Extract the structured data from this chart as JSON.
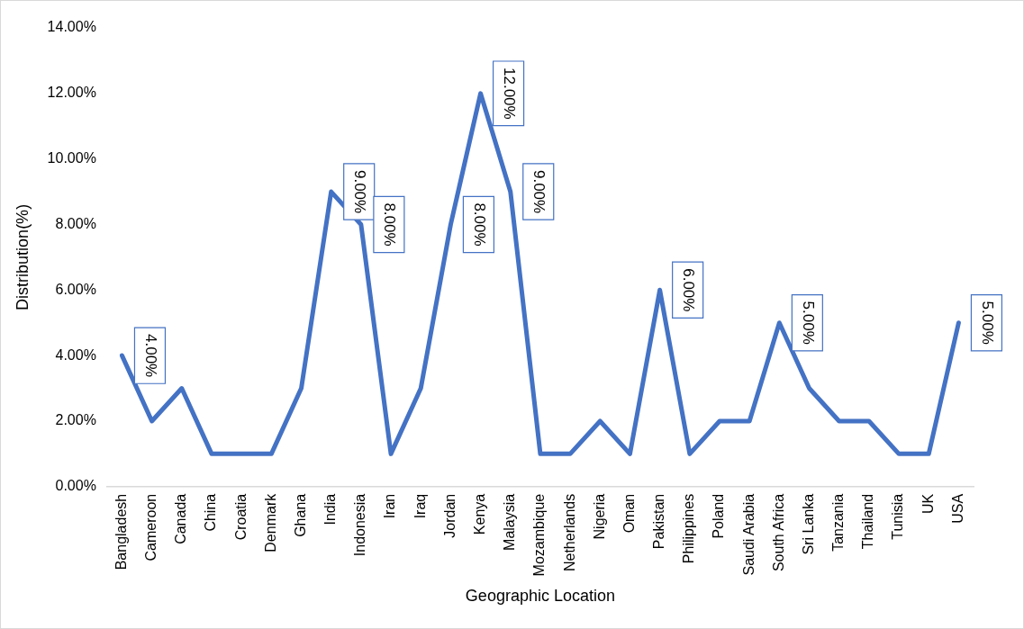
{
  "chart_data": {
    "type": "line",
    "xlabel": "Geographic Location",
    "ylabel": "Distribution(%)",
    "categories": [
      "Bangladesh",
      "Cameroon",
      "Canada",
      "China",
      "Croatia",
      "Denmark",
      "Ghana",
      "India",
      "Indonesia",
      "Iran",
      "Iraq",
      "Jordan",
      "Kenya",
      "Malaysia",
      "Mozambique",
      "Netherlands",
      "Nigeria",
      "Oman",
      "Pakistan",
      "Philippines",
      "Poland",
      "Saudi Arabia",
      "South Africa",
      "Sri Lanka",
      "Tanzania",
      "Thailand",
      "Tunisia",
      "UK",
      "USA"
    ],
    "series": [
      {
        "color": "#4472c4",
        "values": [
          4,
          2,
          3,
          1,
          1,
          1,
          3,
          9,
          8,
          1,
          3,
          8,
          12,
          9,
          1,
          1,
          2,
          1,
          6,
          1,
          2,
          2,
          5,
          3,
          2,
          2,
          1,
          1,
          5
        ],
        "value_labels": [
          "4.00%",
          null,
          null,
          null,
          null,
          null,
          null,
          "9.00%",
          "8.00%",
          null,
          null,
          "8.00%",
          "12.00%",
          "9.00%",
          null,
          null,
          null,
          null,
          "6.00%",
          null,
          null,
          null,
          "5.00%",
          null,
          null,
          null,
          null,
          null,
          "5.00%"
        ]
      }
    ],
    "ylim": [
      0,
      14
    ],
    "yticks": [
      {
        "value": 0,
        "label": "0.00%"
      },
      {
        "value": 2,
        "label": "2.00%"
      },
      {
        "value": 4,
        "label": "4.00%"
      },
      {
        "value": 6,
        "label": "6.00%"
      },
      {
        "value": 8,
        "label": "8.00%"
      },
      {
        "value": 10,
        "label": "10.00%"
      },
      {
        "value": 12,
        "label": "12.00%"
      },
      {
        "value": 14,
        "label": "14.00%"
      }
    ],
    "grid": false,
    "legend": false,
    "marker": "none",
    "line_style": "solid"
  }
}
